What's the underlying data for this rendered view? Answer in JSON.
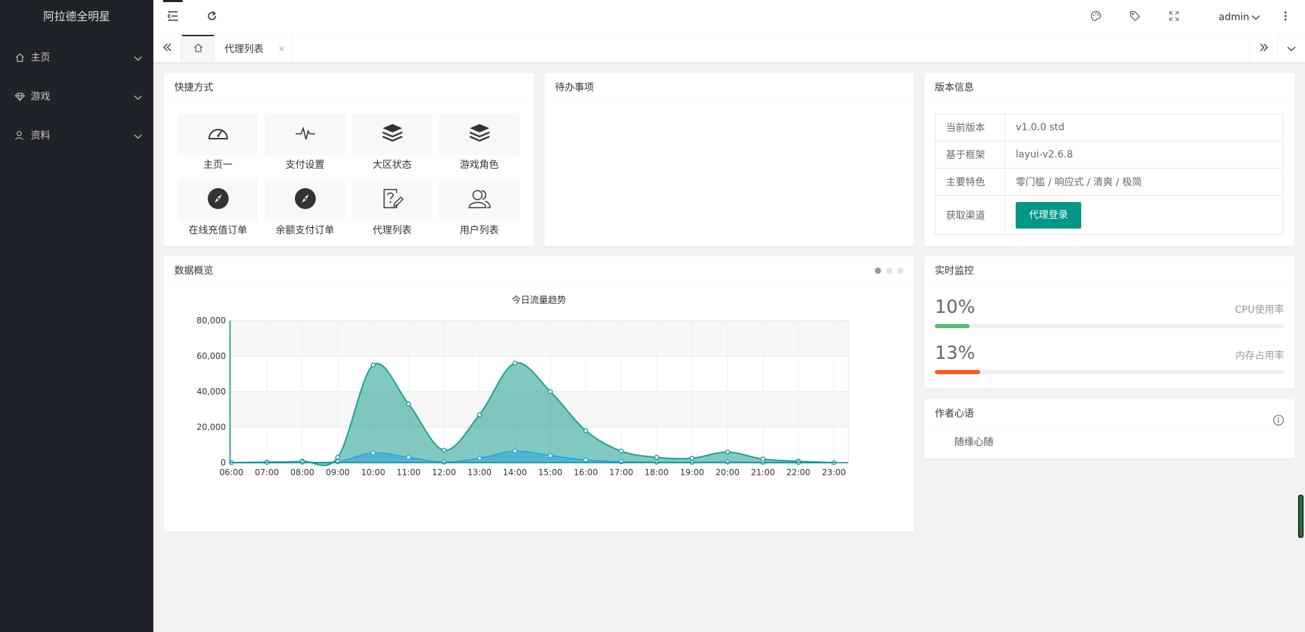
{
  "app": {
    "title": "阿拉德全明星"
  },
  "sidebar": {
    "items": [
      {
        "label": "主页",
        "icon": "home-icon"
      },
      {
        "label": "游戏",
        "icon": "diamond-icon"
      },
      {
        "label": "资料",
        "icon": "user-icon"
      }
    ]
  },
  "header": {
    "user": "admin"
  },
  "tabs": {
    "items": [
      {
        "label": "代理列表",
        "close": "×"
      }
    ]
  },
  "shortcuts": {
    "title": "快捷方式",
    "items": [
      {
        "label": "主页一",
        "icon": "dashboard-icon"
      },
      {
        "label": "支付设置",
        "icon": "pulse-icon"
      },
      {
        "label": "大区状态",
        "icon": "layers-icon"
      },
      {
        "label": "游戏角色",
        "icon": "layers-icon"
      },
      {
        "label": "在线充值订单",
        "icon": "compass-icon"
      },
      {
        "label": "余额支付订单",
        "icon": "compass-icon"
      },
      {
        "label": "代理列表",
        "icon": "help-edit-icon"
      },
      {
        "label": "用户列表",
        "icon": "users-icon"
      }
    ]
  },
  "todo": {
    "title": "待办事项"
  },
  "version": {
    "title": "版本信息",
    "rows": [
      {
        "key": "当前版本",
        "value": "v1.0.0 std"
      },
      {
        "key": "基于框架",
        "value": "layui-v2.6.8"
      },
      {
        "key": "主要特色",
        "value": "零门槛 / 响应式 / 清爽 / 极简"
      },
      {
        "key": "获取渠道",
        "value": "代理登录"
      }
    ]
  },
  "overview": {
    "title": "数据概览"
  },
  "monitor": {
    "title": "实时监控",
    "cpu": {
      "value": "10%",
      "label": "CPU使用率",
      "percent": 10,
      "color": "#5fb878"
    },
    "mem": {
      "value": "13%",
      "label": "内存占用率",
      "percent": 13,
      "color": "#ff5722"
    }
  },
  "author": {
    "title": "作者心语",
    "text": "随缘心随"
  },
  "chart_data": {
    "type": "area",
    "title": "今日流量趋势",
    "categories": [
      "06:00",
      "07:00",
      "08:00",
      "09:00",
      "10:00",
      "11:00",
      "12:00",
      "13:00",
      "14:00",
      "15:00",
      "16:00",
      "17:00",
      "18:00",
      "19:00",
      "20:00",
      "21:00",
      "22:00",
      "23:00"
    ],
    "y_ticks": [
      "0",
      "20,000",
      "40,000",
      "60,000",
      "80,000"
    ],
    "ylim": [
      0,
      80000
    ],
    "grid": true,
    "series": [
      {
        "values": [
          0,
          300,
          800,
          3000,
          55000,
          33000,
          7000,
          27000,
          56000,
          40000,
          18000,
          6500,
          3000,
          2500,
          6000,
          2000,
          800,
          0
        ],
        "color": "#1b9f8e"
      },
      {
        "values": [
          0,
          0,
          200,
          500,
          5500,
          3000,
          300,
          2500,
          6500,
          4000,
          1500,
          500,
          200,
          100,
          300,
          100,
          0,
          0
        ],
        "color": "#2ea7e0"
      }
    ]
  }
}
